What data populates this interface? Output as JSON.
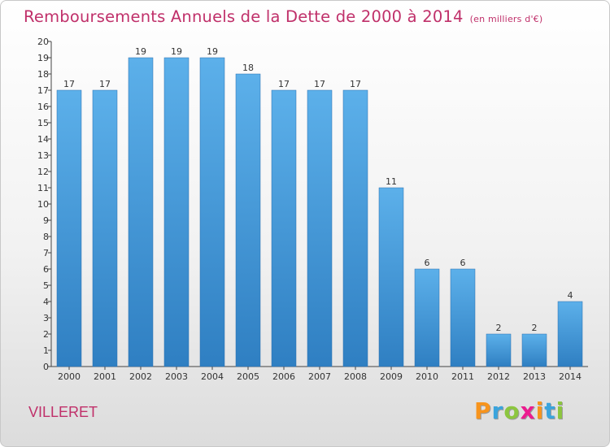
{
  "chart_data": {
    "type": "bar",
    "title": "Remboursements Annuels de la Dette de 2000 à 2014",
    "subtitle": "(en milliers d'€)",
    "categories": [
      "2000",
      "2001",
      "2002",
      "2003",
      "2004",
      "2005",
      "2006",
      "2007",
      "2008",
      "2009",
      "2010",
      "2011",
      "2012",
      "2013",
      "2014"
    ],
    "values": [
      17,
      17,
      19,
      19,
      19,
      18,
      17,
      17,
      17,
      11,
      6,
      6,
      2,
      2,
      4
    ],
    "ylim": [
      0,
      20
    ],
    "yticks": [
      "0",
      "1",
      "2",
      "3",
      "4",
      "5",
      "6",
      "7",
      "8",
      "9",
      "10",
      "11",
      "12",
      "13",
      "14",
      "15",
      "16",
      "17",
      "18",
      "19",
      "20"
    ],
    "grid": false,
    "bar_color": "#4a9fe0"
  },
  "commune": "VILLERET",
  "brand": {
    "letters": [
      "P",
      "r",
      "o",
      "x",
      "i",
      "t",
      "i"
    ],
    "colors": [
      "#f7941d",
      "#3aa4dd",
      "#8cc63f",
      "#ec1c8f",
      "#f7941d",
      "#3aa4dd",
      "#8cc63f"
    ]
  }
}
